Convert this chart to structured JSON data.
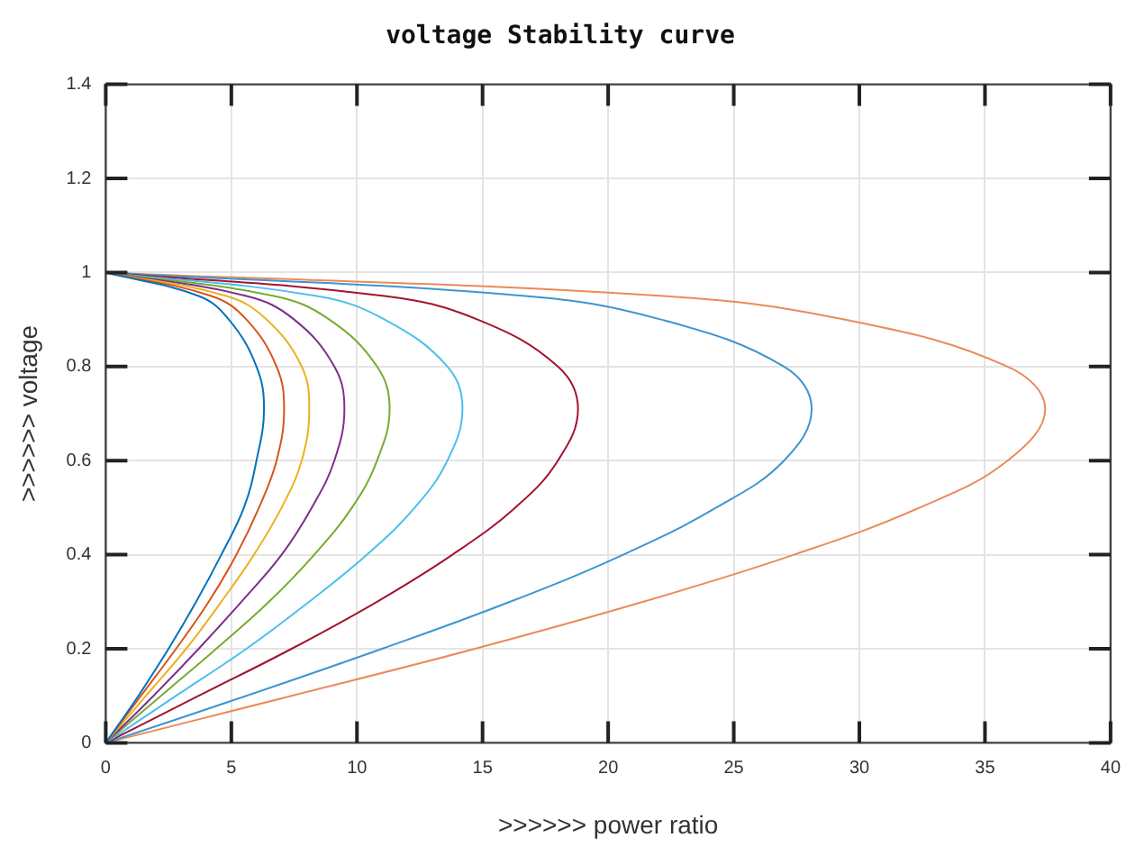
{
  "chart_data": {
    "type": "line",
    "title": "voltage Stability curve",
    "xlabel": ">>>>>> power ratio",
    "ylabel": ">>>>>> voltage",
    "xlim": [
      0,
      40
    ],
    "xticks": [
      0,
      5,
      10,
      15,
      20,
      25,
      30,
      35,
      40
    ],
    "ylim": [
      0,
      1.4
    ],
    "yticks": [
      0,
      0.2,
      0.4,
      0.6,
      0.8,
      1,
      1.2,
      1.4
    ],
    "grid": true,
    "legend": false,
    "marker": "none",
    "line_style": "solid",
    "series": [
      {
        "color": "#0072bd",
        "x": [
          0,
          1.3,
          2.5,
          3.6,
          4.6,
          5.5,
          6.0,
          6.3,
          6.0,
          4.9,
          3.7,
          0
        ],
        "values": [
          0,
          0.1,
          0.2,
          0.3,
          0.4,
          0.5,
          0.6,
          0.71,
          0.8,
          0.9,
          0.95,
          1
        ]
      },
      {
        "color": "#d95319",
        "x": [
          0,
          1.4,
          2.8,
          4.1,
          5.2,
          6.1,
          6.8,
          7.1,
          6.8,
          5.6,
          4.2,
          0
        ],
        "values": [
          0,
          0.1,
          0.2,
          0.3,
          0.4,
          0.5,
          0.6,
          0.71,
          0.8,
          0.9,
          0.95,
          1
        ]
      },
      {
        "color": "#edb120",
        "x": [
          0,
          1.6,
          3.2,
          4.6,
          5.9,
          7.0,
          7.8,
          8.1,
          7.8,
          6.4,
          4.8,
          0
        ],
        "values": [
          0,
          0.1,
          0.2,
          0.3,
          0.4,
          0.5,
          0.6,
          0.71,
          0.8,
          0.9,
          0.95,
          1
        ]
      },
      {
        "color": "#7e2f8e",
        "x": [
          0,
          1.9,
          3.7,
          5.4,
          7.0,
          8.2,
          9.1,
          9.5,
          9.1,
          7.5,
          5.6,
          0
        ],
        "values": [
          0,
          0.1,
          0.2,
          0.3,
          0.4,
          0.5,
          0.6,
          0.71,
          0.8,
          0.9,
          0.95,
          1
        ]
      },
      {
        "color": "#77ac30",
        "x": [
          0,
          2.2,
          4.4,
          6.5,
          8.3,
          9.8,
          10.8,
          11.3,
          10.8,
          8.9,
          6.7,
          0
        ],
        "values": [
          0,
          0.1,
          0.2,
          0.3,
          0.4,
          0.5,
          0.6,
          0.71,
          0.8,
          0.9,
          0.95,
          1
        ]
      },
      {
        "color": "#4dbeee",
        "x": [
          0,
          2.8,
          5.6,
          8.1,
          10.4,
          12.3,
          13.6,
          14.2,
          13.6,
          11.1,
          8.4,
          0
        ],
        "values": [
          0,
          0.1,
          0.2,
          0.3,
          0.4,
          0.5,
          0.6,
          0.71,
          0.8,
          0.9,
          0.95,
          1
        ]
      },
      {
        "color": "#a2142f",
        "x": [
          0,
          3.7,
          7.4,
          10.8,
          13.8,
          16.3,
          18.0,
          18.8,
          18.0,
          14.8,
          11.1,
          0
        ],
        "values": [
          0,
          0.1,
          0.2,
          0.3,
          0.4,
          0.5,
          0.6,
          0.71,
          0.8,
          0.9,
          0.95,
          1
        ]
      },
      {
        "color": "#3d95d0",
        "x": [
          0,
          5.6,
          11.0,
          16.1,
          20.6,
          24.3,
          27.0,
          28.1,
          27.0,
          22.1,
          16.7,
          0
        ],
        "values": [
          0,
          0.1,
          0.2,
          0.3,
          0.4,
          0.5,
          0.6,
          0.71,
          0.8,
          0.9,
          0.95,
          1
        ]
      },
      {
        "color": "#eb8a5a",
        "x": [
          0,
          7.4,
          14.7,
          21.4,
          27.4,
          32.4,
          35.9,
          37.4,
          35.9,
          29.4,
          22.2,
          0
        ],
        "values": [
          0,
          0.1,
          0.2,
          0.3,
          0.4,
          0.5,
          0.6,
          0.71,
          0.8,
          0.9,
          0.95,
          1
        ]
      }
    ]
  }
}
